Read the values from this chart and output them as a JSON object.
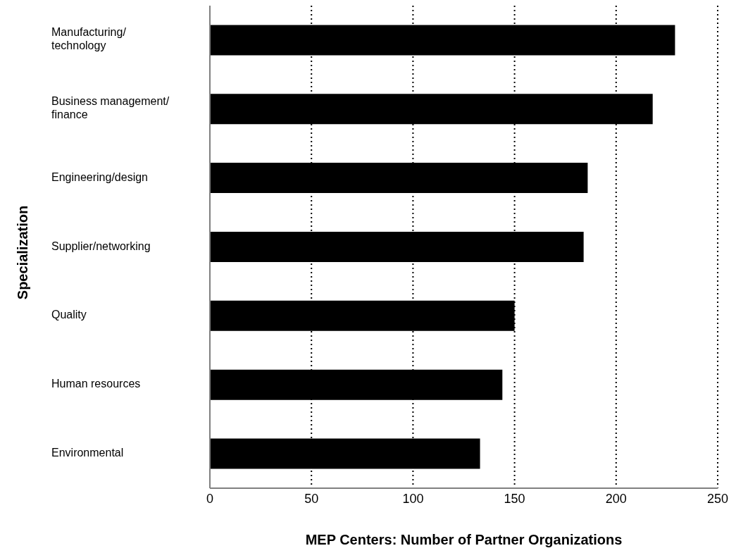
{
  "chart_data": {
    "type": "bar",
    "orientation": "horizontal",
    "xlabel": "MEP Centers: Number of Partner Organizations",
    "ylabel": "Specialization",
    "categories": [
      "Manufacturing/technology",
      "Business management/finance",
      "Engineering/design",
      "Supplier/networking",
      "Quality",
      "Human resources",
      "Environmental"
    ],
    "values": [
      229,
      218,
      186,
      184,
      150,
      144,
      133
    ],
    "color": "#000000",
    "xlim": [
      0,
      250
    ],
    "xticks": [
      0,
      50,
      100,
      150,
      200,
      250
    ],
    "grid": "x",
    "legend": false
  }
}
